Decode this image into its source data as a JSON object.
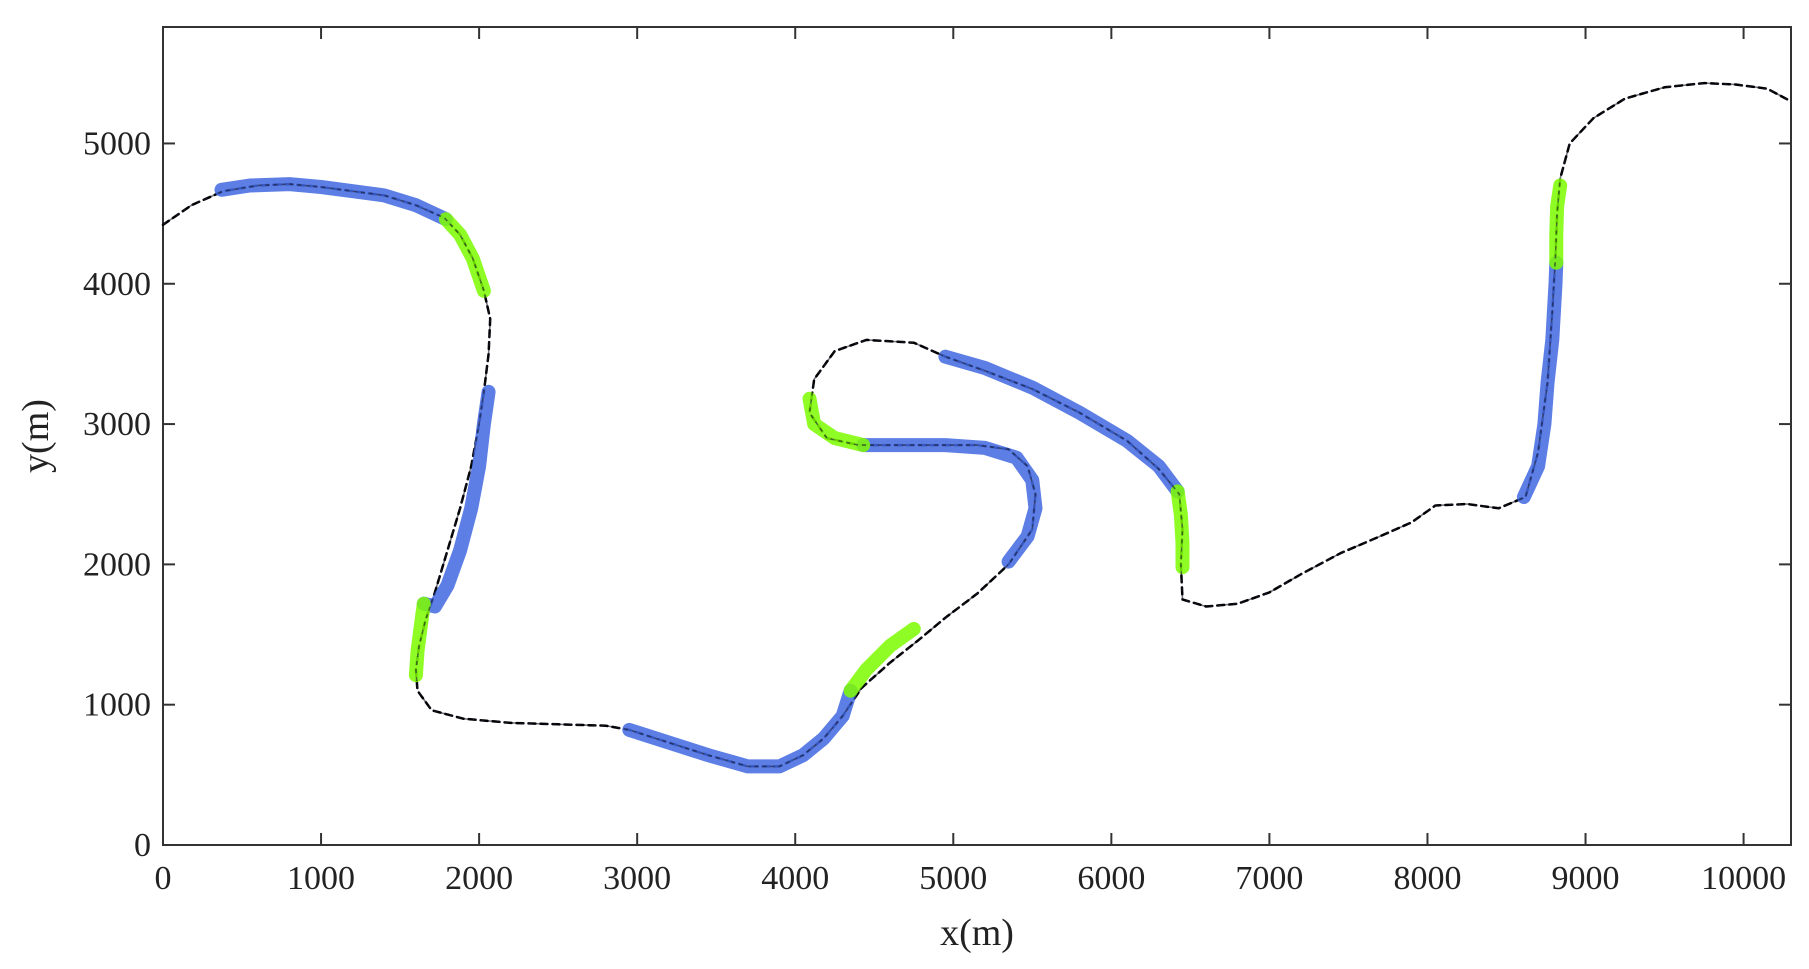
{
  "chart_data": {
    "type": "line",
    "title": "",
    "xlabel": "x(m)",
    "ylabel": "y(m)",
    "xlim": [
      0,
      10300
    ],
    "ylim": [
      0,
      5000
    ],
    "y_display_max": 5830,
    "xticks": [
      0,
      1000,
      2000,
      3000,
      4000,
      5000,
      6000,
      7000,
      8000,
      9000,
      10000
    ],
    "yticks": [
      0,
      1000,
      2000,
      3000,
      4000,
      5000
    ],
    "grid": false,
    "legend": "none",
    "colors": {
      "path": "#000000",
      "blue": "#4169e1",
      "green": "#7cfc00",
      "axis": "#333333"
    },
    "series": [
      {
        "style": "dashed",
        "color": "#000000",
        "x": [
          0,
          180,
          380,
          600,
          800,
          1000,
          1200,
          1400,
          1600,
          1780,
          1880,
          1960,
          2030,
          2070,
          2060,
          2030,
          2000,
          1950,
          1880,
          1800,
          1720,
          1660,
          1620,
          1600,
          1610,
          1700,
          1900,
          2200,
          2500,
          2800,
          2950,
          3200,
          3450,
          3700,
          3900,
          4050,
          4180,
          4300,
          4420,
          4600,
          4780,
          4950,
          5150,
          5350,
          5500,
          5520,
          5470,
          5350,
          5150,
          4900,
          4650,
          4400,
          4200,
          4090,
          4120,
          4250,
          4450,
          4750,
          4950,
          5200,
          5500,
          5800,
          6100,
          6300,
          6430,
          6450,
          6440,
          6450,
          6600,
          6800,
          7000,
          7200,
          7450,
          7700,
          7900,
          8050,
          8250,
          8450,
          8620,
          8700,
          8760,
          8790,
          8810,
          8820,
          8840,
          8900,
          9050,
          9250,
          9500,
          9750,
          9950,
          10150,
          10300
        ],
        "y": [
          4420,
          4560,
          4660,
          4700,
          4710,
          4690,
          4660,
          4630,
          4560,
          4470,
          4350,
          4180,
          3950,
          3750,
          3500,
          3230,
          3000,
          2700,
          2400,
          2100,
          1800,
          1600,
          1420,
          1250,
          1100,
          960,
          900,
          870,
          860,
          850,
          820,
          730,
          640,
          560,
          560,
          640,
          760,
          920,
          1120,
          1300,
          1460,
          1620,
          1790,
          2000,
          2250,
          2500,
          2700,
          2820,
          2850,
          2850,
          2850,
          2850,
          2900,
          3080,
          3320,
          3520,
          3600,
          3580,
          3480,
          3380,
          3250,
          3080,
          2880,
          2680,
          2500,
          2250,
          2000,
          1750,
          1700,
          1720,
          1800,
          1930,
          2080,
          2200,
          2300,
          2420,
          2430,
          2400,
          2480,
          2800,
          3300,
          3800,
          4200,
          4500,
          4750,
          5000,
          5180,
          5320,
          5400,
          5430,
          5420,
          5390,
          5300
        ]
      },
      {
        "style": "thick",
        "color": "#4169e1",
        "x": [
          370,
          550,
          800,
          1000,
          1200,
          1400,
          1600,
          1790
        ],
        "y": [
          4670,
          4700,
          4710,
          4690,
          4660,
          4630,
          4560,
          4460
        ]
      },
      {
        "style": "thick",
        "color": "#7cfc00",
        "x": [
          1790,
          1880,
          1960,
          2030
        ],
        "y": [
          4460,
          4350,
          4180,
          3950
        ]
      },
      {
        "style": "thick",
        "color": "#4169e1",
        "x": [
          2060,
          2030,
          2000,
          1950,
          1880,
          1800,
          1720,
          1650
        ],
        "y": [
          3230,
          3000,
          2700,
          2400,
          2100,
          1850,
          1700,
          1720
        ]
      },
      {
        "style": "thick",
        "color": "#7cfc00",
        "x": [
          1650,
          1630,
          1610,
          1600
        ],
        "y": [
          1720,
          1550,
          1380,
          1210
        ]
      },
      {
        "style": "thick",
        "color": "#4169e1",
        "x": [
          2950,
          3200,
          3450,
          3700,
          3900,
          4050,
          4180,
          4300,
          4350
        ],
        "y": [
          820,
          730,
          640,
          560,
          560,
          640,
          760,
          920,
          1100
        ]
      },
      {
        "style": "thick",
        "color": "#7cfc00",
        "x": [
          4350,
          4450,
          4600,
          4750
        ],
        "y": [
          1100,
          1250,
          1420,
          1540
        ]
      },
      {
        "style": "thick",
        "color": "#4169e1",
        "x": [
          5350,
          5470,
          5520,
          5500,
          5400,
          5200,
          4950,
          4700,
          4430
        ],
        "y": [
          2020,
          2200,
          2400,
          2600,
          2760,
          2830,
          2850,
          2850,
          2850
        ]
      },
      {
        "style": "thick",
        "color": "#7cfc00",
        "x": [
          4430,
          4250,
          4120,
          4090
        ],
        "y": [
          2850,
          2900,
          3000,
          3180
        ]
      },
      {
        "style": "thick",
        "color": "#4169e1",
        "x": [
          4950,
          5200,
          5500,
          5800,
          6100,
          6300,
          6420
        ],
        "y": [
          3480,
          3400,
          3260,
          3080,
          2880,
          2700,
          2520
        ]
      },
      {
        "style": "thick",
        "color": "#7cfc00",
        "x": [
          6420,
          6440,
          6450,
          6450
        ],
        "y": [
          2520,
          2350,
          2150,
          1980
        ]
      },
      {
        "style": "thick",
        "color": "#4169e1",
        "x": [
          8610,
          8700,
          8740,
          8760,
          8790,
          8800,
          8810,
          8815
        ],
        "y": [
          2480,
          2700,
          3000,
          3300,
          3600,
          3800,
          4000,
          4150
        ]
      },
      {
        "style": "thick",
        "color": "#7cfc00",
        "x": [
          8815,
          8815,
          8820,
          8840
        ],
        "y": [
          4150,
          4350,
          4550,
          4700
        ]
      }
    ]
  }
}
